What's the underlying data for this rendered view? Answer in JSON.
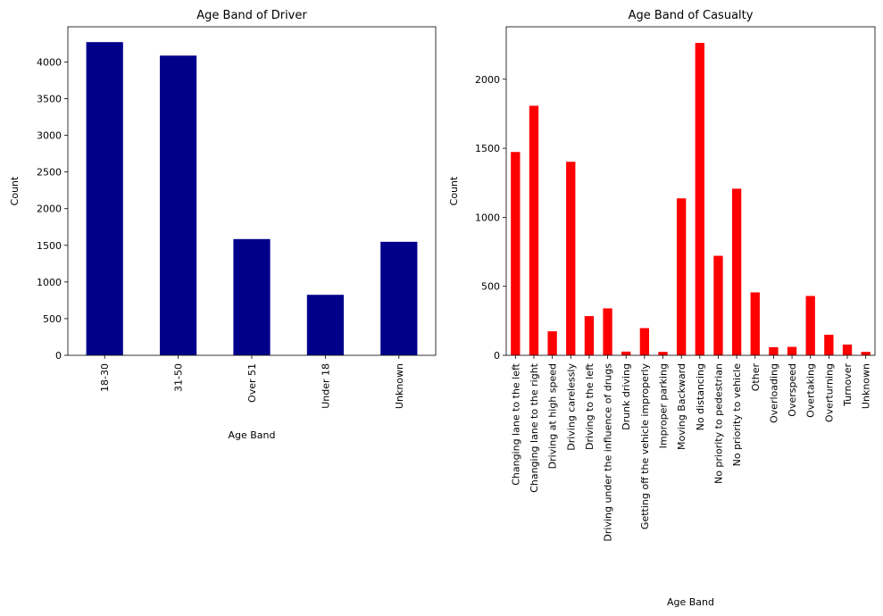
{
  "chart_data": [
    {
      "type": "bar",
      "title": "Age Band of Driver",
      "xlabel": "Age Band",
      "ylabel": "Count",
      "categories": [
        "18-30",
        "31-50",
        "Over 51",
        "Under 18",
        "Unknown"
      ],
      "values": [
        4271,
        4087,
        1585,
        825,
        1548
      ],
      "ylim": [
        0,
        4480
      ],
      "yticks": [
        0,
        500,
        1000,
        1500,
        2000,
        2500,
        3000,
        3500,
        4000
      ],
      "bar_color": "#00008b",
      "grid": false,
      "legend": "none"
    },
    {
      "type": "bar",
      "title": "Age Band of Casualty",
      "xlabel": "Age Band",
      "ylabel": "Count",
      "categories": [
        "Changing lane to the left",
        "Changing lane to the right",
        "Driving at high speed",
        "Driving carelessly",
        "Driving to the left",
        "Driving under the influence of drugs",
        "Drunk driving",
        "Getting off the vehicle improperly",
        "Improper parking",
        "Moving Backward",
        "No distancing",
        "No priority to pedestrian",
        "No priority to vehicle",
        "Other",
        "Overloading",
        "Overspeed",
        "Overtaking",
        "Overturning",
        "Turnover",
        "Unknown"
      ],
      "values": [
        1473,
        1808,
        174,
        1402,
        284,
        340,
        27,
        197,
        25,
        1137,
        2263,
        721,
        1207,
        456,
        59,
        61,
        430,
        149,
        78,
        25
      ],
      "ylim": [
        0,
        2380
      ],
      "yticks": [
        0,
        500,
        1000,
        1500,
        2000
      ],
      "bar_color": "#ff0000",
      "grid": false,
      "legend": "none"
    }
  ]
}
